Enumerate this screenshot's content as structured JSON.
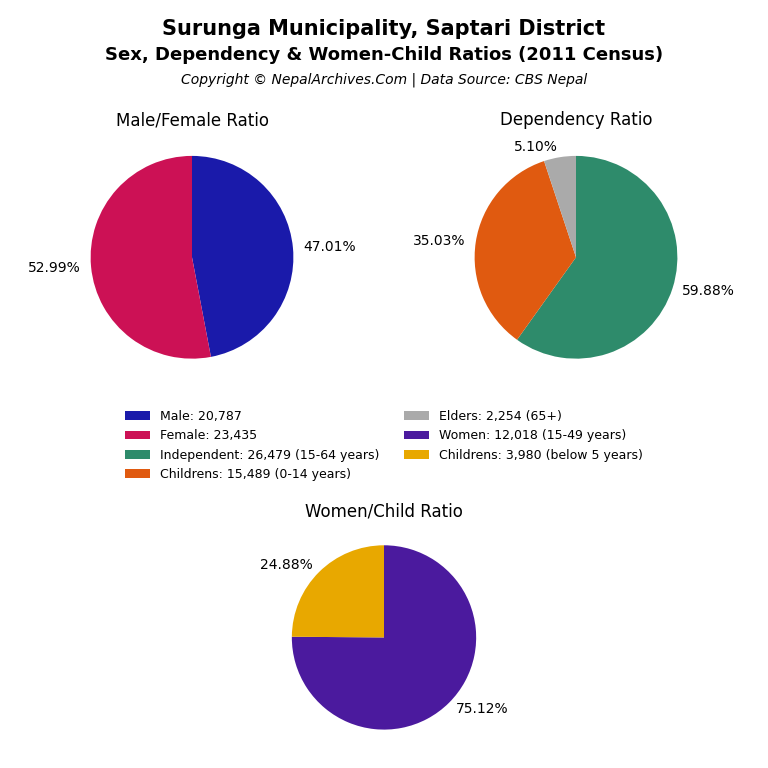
{
  "title": "Surunga Municipality, Saptari District",
  "subtitle": "Sex, Dependency & Women-Child Ratios (2011 Census)",
  "annotations": [
    "Copyright © NepalArchives.Com | Data Source: CBS Nepal"
  ],
  "chart_data": [
    {
      "type": "pie",
      "title": "Male/Female Ratio",
      "categories": [
        "Male: 20,787",
        "Female: 23,435"
      ],
      "values": [
        47.01,
        52.99
      ],
      "value_labels": [
        "47.01%",
        "52.99%"
      ],
      "colors": [
        "#1a1aaa",
        "#cc1155"
      ],
      "data_labels": true,
      "legend": "center"
    },
    {
      "type": "pie",
      "title": "Dependency Ratio",
      "categories": [
        "Independent: 26,479 (15-64 years)",
        "Childrens: 15,489 (0-14 years)",
        "Elders: 2,254 (65+)"
      ],
      "values": [
        59.88,
        35.03,
        5.1
      ],
      "value_labels": [
        "59.88%",
        "35.03%",
        "5.10%"
      ],
      "colors": [
        "#2e8b6b",
        "#e05a10",
        "#aaaaaa"
      ],
      "data_labels": true,
      "legend": "center"
    },
    {
      "type": "pie",
      "title": "Women/Child Ratio",
      "categories": [
        "Women: 12,018 (15-49 years)",
        "Childrens: 3,980 (below 5 years)"
      ],
      "values": [
        75.12,
        24.88
      ],
      "value_labels": [
        "75.12%",
        "24.88%"
      ],
      "colors": [
        "#4b1a9e",
        "#e8a800"
      ],
      "data_labels": true,
      "legend": "center"
    }
  ]
}
